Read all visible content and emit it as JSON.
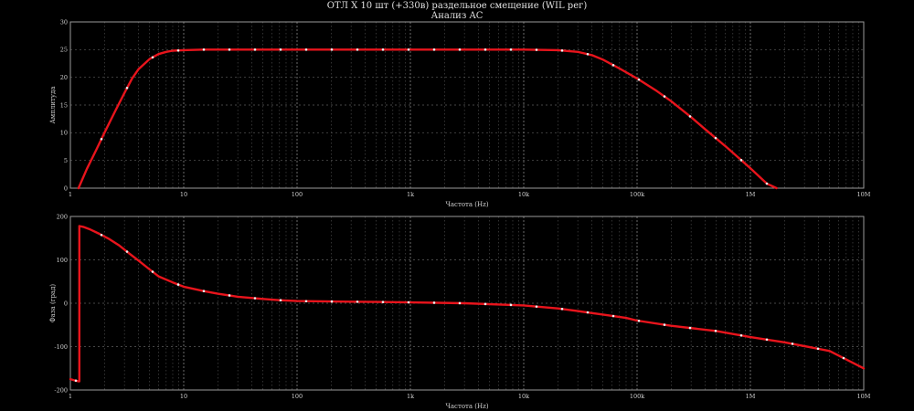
{
  "window": {
    "title": "ОТЛ X 10 шт (+330в) раздельное смещение (WIL рег)",
    "subtitle": "Анализ AC"
  },
  "colors": {
    "background": "#000000",
    "axis": "#9a9a9a",
    "grid": "#6f6f6f",
    "trace": "#e8141c",
    "marker": "#f0f0f0",
    "text": "#cfcfcf"
  },
  "chart_data": [
    {
      "type": "line",
      "xlabel": "Частота (Hz)",
      "ylabel": "Амплитуда",
      "xscale": "log",
      "xlim": [
        1,
        10000000
      ],
      "ylim": [
        0,
        30
      ],
      "grid": true,
      "xticks": [
        {
          "value": 1,
          "label": "1"
        },
        {
          "value": 10,
          "label": "10"
        },
        {
          "value": 100,
          "label": "100"
        },
        {
          "value": 1000,
          "label": "1k"
        },
        {
          "value": 10000,
          "label": "10k"
        },
        {
          "value": 100000,
          "label": "100k"
        },
        {
          "value": 1000000,
          "label": "1M"
        },
        {
          "value": 10000000,
          "label": "10M"
        }
      ],
      "yticks": [
        {
          "value": 0,
          "label": "0"
        },
        {
          "value": 5,
          "label": "5"
        },
        {
          "value": 10,
          "label": "10"
        },
        {
          "value": 15,
          "label": "15"
        },
        {
          "value": 20,
          "label": "20"
        },
        {
          "value": 25,
          "label": "25"
        },
        {
          "value": 30,
          "label": "30"
        }
      ],
      "series": [
        {
          "x": [
            1.18,
            1.4,
            1.7,
            2.0,
            2.5,
            3.0,
            3.5,
            4.0,
            5.0,
            6.0,
            7.0,
            8.0,
            10,
            15,
            20,
            50,
            100,
            300,
            1000,
            3000,
            10000,
            20000,
            30000,
            40000,
            50000,
            70000,
            100000,
            150000,
            200000,
            300000,
            400000,
            600000,
            1000000,
            1400000,
            1700000
          ],
          "y": [
            0,
            3.5,
            7.0,
            10.0,
            14.0,
            17.2,
            19.8,
            21.5,
            23.3,
            24.2,
            24.6,
            24.8,
            24.9,
            25.0,
            25.0,
            25.0,
            25.0,
            25.0,
            25.0,
            25.0,
            25.0,
            24.9,
            24.6,
            24.0,
            23.2,
            21.6,
            19.8,
            17.5,
            15.7,
            12.8,
            10.6,
            7.6,
            3.6,
            0.8,
            0
          ]
        }
      ]
    },
    {
      "type": "line",
      "xlabel": "Частота (Hz)",
      "ylabel": "Фаза (град)",
      "xscale": "log",
      "xlim": [
        1,
        10000000
      ],
      "ylim": [
        -200,
        200
      ],
      "grid": true,
      "xticks": [
        {
          "value": 1,
          "label": "1"
        },
        {
          "value": 10,
          "label": "10"
        },
        {
          "value": 100,
          "label": "100"
        },
        {
          "value": 1000,
          "label": "1k"
        },
        {
          "value": 10000,
          "label": "10k"
        },
        {
          "value": 100000,
          "label": "100k"
        },
        {
          "value": 1000000,
          "label": "1M"
        },
        {
          "value": 10000000,
          "label": "10M"
        }
      ],
      "yticks": [
        {
          "value": 200,
          "label": "200"
        },
        {
          "value": 100,
          "label": "100"
        },
        {
          "value": 0,
          "label": "0"
        },
        {
          "value": -100,
          "label": "-100"
        },
        {
          "value": -200,
          "label": "-200"
        }
      ],
      "series": [
        {
          "x": [
            1.0,
            1.1,
            1.18,
            1.2,
            1.3,
            1.5,
            1.8,
            2.2,
            2.7,
            3.3,
            4.0,
            5.0,
            6.0,
            8.0,
            10,
            15,
            20,
            30,
            50,
            70,
            100,
            200,
            500,
            1000,
            3000,
            10000,
            20000,
            30000,
            50000,
            80000,
            100000,
            200000,
            500000,
            1000000,
            2000000,
            5000000,
            10000000
          ],
          "y": [
            -175,
            -178,
            -180,
            178,
            176,
            170,
            160,
            148,
            133,
            115,
            98,
            78,
            62,
            48,
            38,
            28,
            22,
            15,
            10,
            7,
            5,
            4,
            3,
            2,
            0,
            -5,
            -12,
            -18,
            -26,
            -34,
            -40,
            -52,
            -64,
            -78,
            -90,
            -110,
            -150
          ]
        }
      ]
    }
  ]
}
